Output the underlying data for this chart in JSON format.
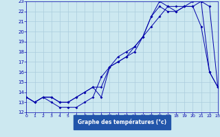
{
  "xlabel": "Graphe des températures (°c)",
  "x": [
    0,
    1,
    2,
    3,
    4,
    5,
    6,
    7,
    8,
    9,
    10,
    11,
    12,
    13,
    14,
    15,
    16,
    17,
    18,
    19,
    20,
    21,
    22,
    23
  ],
  "curve1": [
    13.5,
    13.0,
    13.5,
    13.0,
    12.5,
    12.5,
    12.5,
    13.0,
    13.5,
    15.5,
    16.5,
    17.5,
    18.0,
    18.5,
    19.5,
    20.5,
    21.5,
    22.5,
    22.5,
    22.5,
    22.5,
    20.5,
    16.0,
    14.5
  ],
  "curve2": [
    13.5,
    13.0,
    13.5,
    13.5,
    13.0,
    13.0,
    13.5,
    14.0,
    14.5,
    13.5,
    16.5,
    17.0,
    17.5,
    18.5,
    19.5,
    21.5,
    22.5,
    22.0,
    22.0,
    22.5,
    23.0,
    23.0,
    22.5,
    14.5
  ],
  "curve3": [
    13.5,
    13.0,
    13.5,
    13.5,
    13.0,
    13.0,
    13.5,
    14.0,
    14.5,
    14.5,
    16.5,
    17.0,
    17.5,
    18.0,
    19.5,
    21.5,
    23.0,
    22.5,
    22.0,
    22.5,
    22.5,
    23.0,
    16.0,
    14.5
  ],
  "curve_color": "#0000aa",
  "bg_color": "#cce8f0",
  "grid_color": "#aaccdd",
  "label_bg": "#2255aa",
  "ylim": [
    12,
    23
  ],
  "xlim": [
    0,
    23
  ]
}
